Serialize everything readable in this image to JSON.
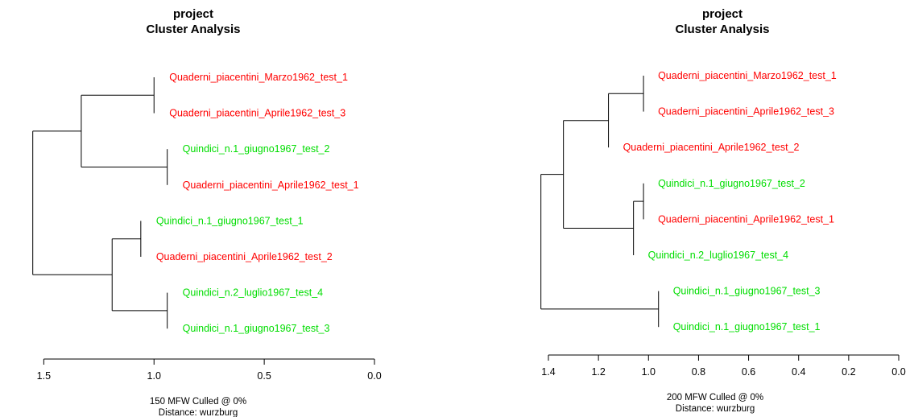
{
  "colors": {
    "group_a": "#ff0000",
    "group_b": "#00dd00"
  },
  "chart_data": [
    {
      "type": "dendrogram",
      "title": "project",
      "subtitle": "Cluster Analysis",
      "caption_line1": "150 MFW  Culled @ 0%",
      "caption_line2": "Distance: wurzburg",
      "xlim": [
        1.6,
        0.0
      ],
      "tick_values": [
        1.5,
        1.0,
        0.5,
        0.0
      ],
      "tick_labels": [
        "1.5",
        "1.0",
        "0.5",
        "0.0"
      ],
      "leaves": [
        {
          "label": "Quaderni_piacentini_Marzo1962_test_1",
          "color": "red"
        },
        {
          "label": "Quaderni_piacentini_Aprile1962_test_3",
          "color": "red"
        },
        {
          "label": "Quindici_n.1_giugno1967_test_2",
          "color": "green"
        },
        {
          "label": "Quaderni_piacentini_Aprile1962_test_1",
          "color": "red"
        },
        {
          "label": "Quindici_n.1_giugno1967_test_1",
          "color": "green"
        },
        {
          "label": "Quaderni_piacentini_Aprile1962_test_2",
          "color": "red"
        },
        {
          "label": "Quindici_n.2_luglio1967_test_4",
          "color": "green"
        },
        {
          "label": "Quindici_n.1_giugno1967_test_3",
          "color": "green"
        }
      ],
      "merges": [
        {
          "a": "L0",
          "b": "L1",
          "h": 1.0
        },
        {
          "a": "L2",
          "b": "L3",
          "h": 0.94
        },
        {
          "a": "N0",
          "b": "N1",
          "h": 1.33
        },
        {
          "a": "L4",
          "b": "L5",
          "h": 1.06
        },
        {
          "a": "L6",
          "b": "L7",
          "h": 0.94
        },
        {
          "a": "N3",
          "b": "N4",
          "h": 1.19
        },
        {
          "a": "N2",
          "b": "N5",
          "h": 1.55
        }
      ]
    },
    {
      "type": "dendrogram",
      "title": "project",
      "subtitle": "Cluster Analysis",
      "caption_line1": "200 MFW  Culled @ 0%",
      "caption_line2": "Distance: wurzburg",
      "xlim": [
        1.4,
        0.0
      ],
      "tick_values": [
        1.4,
        1.2,
        1.0,
        0.8,
        0.6,
        0.4,
        0.2,
        0.0
      ],
      "tick_labels": [
        "1.4",
        "1.2",
        "1.0",
        "0.8",
        "0.6",
        "0.4",
        "0.2",
        "0.0"
      ],
      "leaves": [
        {
          "label": "Quaderni_piacentini_Marzo1962_test_1",
          "color": "red"
        },
        {
          "label": "Quaderni_piacentini_Aprile1962_test_3",
          "color": "red"
        },
        {
          "label": "Quaderni_piacentini_Aprile1962_test_2",
          "color": "red"
        },
        {
          "label": "Quindici_n.1_giugno1967_test_2",
          "color": "green"
        },
        {
          "label": "Quaderni_piacentini_Aprile1962_test_1",
          "color": "red"
        },
        {
          "label": "Quindici_n.2_luglio1967_test_4",
          "color": "green"
        },
        {
          "label": "Quindici_n.1_giugno1967_test_3",
          "color": "green"
        },
        {
          "label": "Quindici_n.1_giugno1967_test_1",
          "color": "green"
        }
      ],
      "merges": [
        {
          "a": "L0",
          "b": "L1",
          "h": 1.02
        },
        {
          "a": "N0",
          "b": "L2",
          "h": 1.16
        },
        {
          "a": "L3",
          "b": "L4",
          "h": 1.02
        },
        {
          "a": "N2",
          "b": "L5",
          "h": 1.06
        },
        {
          "a": "N1",
          "b": "N3",
          "h": 1.34
        },
        {
          "a": "L6",
          "b": "L7",
          "h": 0.96
        },
        {
          "a": "N4",
          "b": "N5",
          "h": 1.43
        }
      ]
    }
  ]
}
